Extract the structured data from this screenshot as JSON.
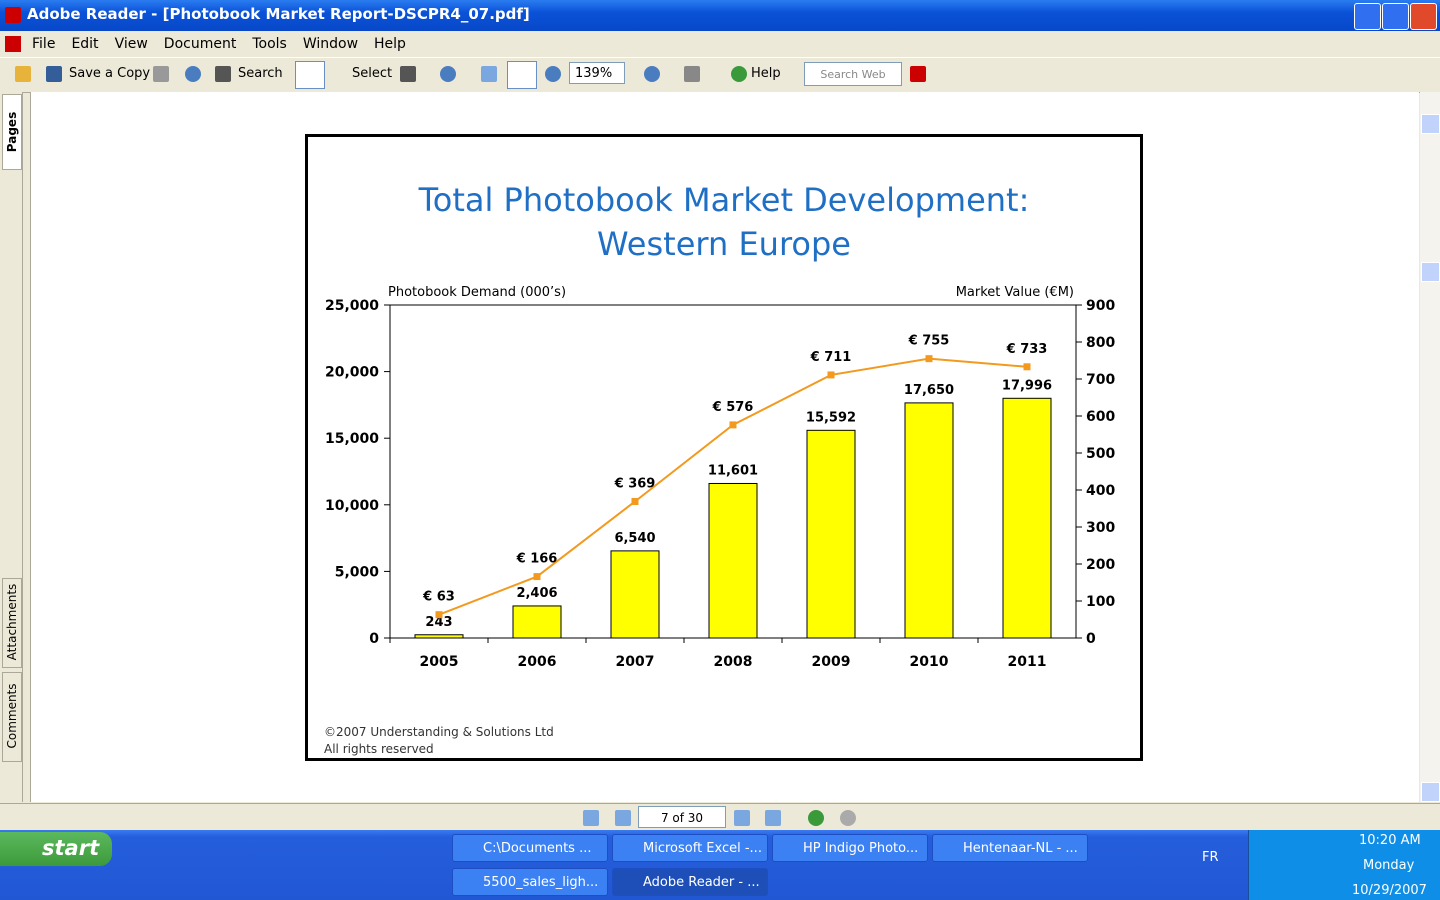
{
  "window": {
    "title": "Adobe Reader - [Photobook Market Report-DSCPR4_07.pdf]",
    "menu": [
      "File",
      "Edit",
      "View",
      "Document",
      "Tools",
      "Window",
      "Help"
    ],
    "toolbar": {
      "save": "Save a Copy",
      "search": "Search",
      "select": "Select",
      "zoom": "139%",
      "help": "Help",
      "search_web": "Search Web"
    },
    "side_tabs": [
      "Pages",
      "Attachments",
      "Comments"
    ],
    "page_nav": "7 of 30"
  },
  "chart_data": {
    "type": "bar_line",
    "title": [
      "Total Photobook Market Development:",
      "Western Europe"
    ],
    "ylabel": "Photobook Demand (000’s)",
    "y2label": "Market Value (€M)",
    "categories": [
      "2005",
      "2006",
      "2007",
      "2008",
      "2009",
      "2010",
      "2011"
    ],
    "series": [
      {
        "name": "Photobook Demand",
        "type": "bar",
        "color": "#ffff00",
        "values": [
          243,
          2406,
          6540,
          11601,
          15592,
          17650,
          17996
        ],
        "value_labels": [
          "243",
          "2,406",
          "6,540",
          "11,601",
          "15,592",
          "17,650",
          "17,996"
        ]
      },
      {
        "name": "Market Value",
        "type": "line",
        "axis": "y2",
        "color": "#f39a1e",
        "values": [
          63,
          166,
          369,
          576,
          711,
          755,
          733
        ],
        "value_labels": [
          "€ 63",
          "€ 166",
          "€ 369",
          "€ 576",
          "€ 711",
          "€ 755",
          "€ 733"
        ]
      }
    ],
    "ylim": [
      0,
      25000
    ],
    "yticks": [
      0,
      {
        "value": 5000,
        "label": "5,000"
      },
      {
        "value": 10000,
        "label": "10,000"
      },
      {
        "value": 15000,
        "label": "15,000"
      },
      {
        "value": 20000,
        "label": "20,000"
      },
      {
        "value": 25000,
        "label": "25,000"
      }
    ],
    "y2lim": [
      0,
      900
    ],
    "y2ticks": [
      0,
      100,
      200,
      300,
      400,
      500,
      600,
      700,
      800,
      900
    ],
    "grid": false,
    "footnote": [
      "©2007 Understanding & Solutions Ltd",
      "All rights reserved"
    ]
  },
  "taskbar": {
    "start": "start",
    "tasks": [
      "C:\\Documents ...",
      "Microsoft Excel -...",
      "HP Indigo Photo...",
      "Hentenaar-NL - ...",
      "5500_sales_ligh...",
      "Adobe Reader - ..."
    ],
    "language": "FR",
    "time": "10:20 AM",
    "day": "Monday",
    "date": "10/29/2007"
  }
}
